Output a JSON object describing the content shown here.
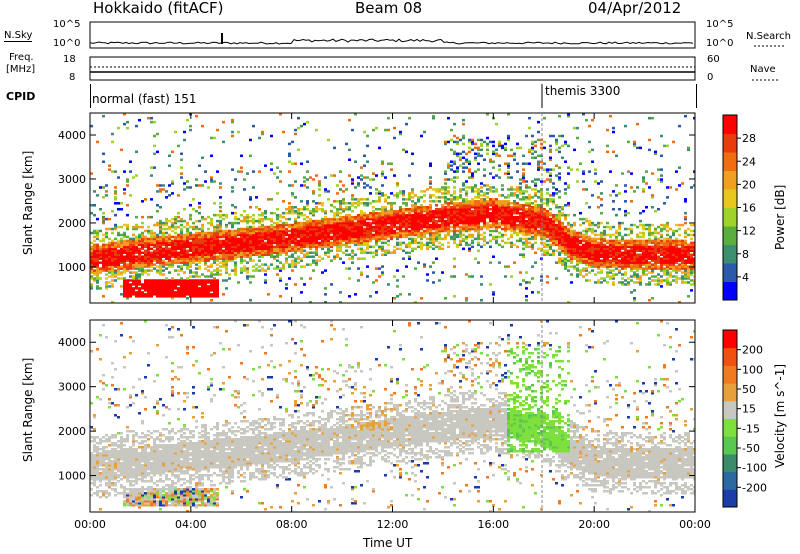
{
  "header": {
    "station": "Hokkaido (fitACF)",
    "beam": "Beam 08",
    "date": "04/Apr/2012"
  },
  "panels": {
    "nsky": {
      "left_label": "N.Sky",
      "right_label": "N.Search",
      "left_ticks": [
        "10^5",
        "10^0"
      ],
      "right_ticks": [
        "10^5",
        "10^0"
      ]
    },
    "freq": {
      "left_label_1": "Freq.",
      "left_label_2": "[MHz]",
      "right_label": "Nave",
      "left_ticks": [
        "18",
        "8"
      ],
      "right_ticks": [
        "60",
        "0"
      ]
    },
    "cpid": {
      "label": "CPID",
      "modes": [
        {
          "text": "normal (fast) 151",
          "start": "00:00"
        },
        {
          "text": "themis 3300",
          "start": "18:00"
        }
      ]
    }
  },
  "chart_data": [
    {
      "type": "heatmap",
      "title": "",
      "ylabel": "Slant Range [km]",
      "xlabel": "",
      "y_ticks": [
        "1000",
        "2000",
        "3000",
        "4000"
      ],
      "ylim": [
        180,
        4500
      ],
      "x_ticks": [
        "00:00",
        "04:00",
        "08:00",
        "12:00",
        "16:00",
        "20:00",
        "00:00"
      ],
      "colorbar": {
        "label": "Power [dB]",
        "ticks": [
          "4",
          "8",
          "12",
          "16",
          "20",
          "24",
          "28"
        ],
        "colors": [
          "#0000ff",
          "#2b5ba8",
          "#3b8e6e",
          "#5aae3e",
          "#9ed42a",
          "#e8c81e",
          "#f0a020",
          "#f06e10",
          "#e83c0c",
          "#ff0000"
        ]
      },
      "main_band": [
        [
          0,
          1150
        ],
        [
          2,
          1300
        ],
        [
          4,
          1420
        ],
        [
          6,
          1520
        ],
        [
          8,
          1650
        ],
        [
          10,
          1800
        ],
        [
          12,
          1950
        ],
        [
          14,
          2100
        ],
        [
          16,
          2200
        ],
        [
          17,
          2100
        ],
        [
          18,
          2000
        ],
        [
          19,
          1500
        ],
        [
          20,
          1300
        ],
        [
          22,
          1250
        ],
        [
          24,
          1250
        ]
      ]
    },
    {
      "type": "heatmap",
      "title": "",
      "ylabel": "Slant Range [km]",
      "xlabel": "Time UT",
      "y_ticks": [
        "1000",
        "2000",
        "3000",
        "4000"
      ],
      "ylim": [
        180,
        4500
      ],
      "x_ticks": [
        "00:00",
        "04:00",
        "08:00",
        "12:00",
        "16:00",
        "20:00",
        "00:00"
      ],
      "colorbar": {
        "label": "Velocity [m s^-1]",
        "ticks": [
          "200",
          "100",
          "50",
          "15",
          "-15",
          "-50",
          "-100",
          "-200"
        ],
        "colors": [
          "#1c3caa",
          "#2a6aa0",
          "#3c8c6c",
          "#5ac850",
          "#7ee03c",
          "#c8c8c0",
          "#e8a03c",
          "#f07a20",
          "#f05010",
          "#ff0000"
        ]
      }
    }
  ]
}
